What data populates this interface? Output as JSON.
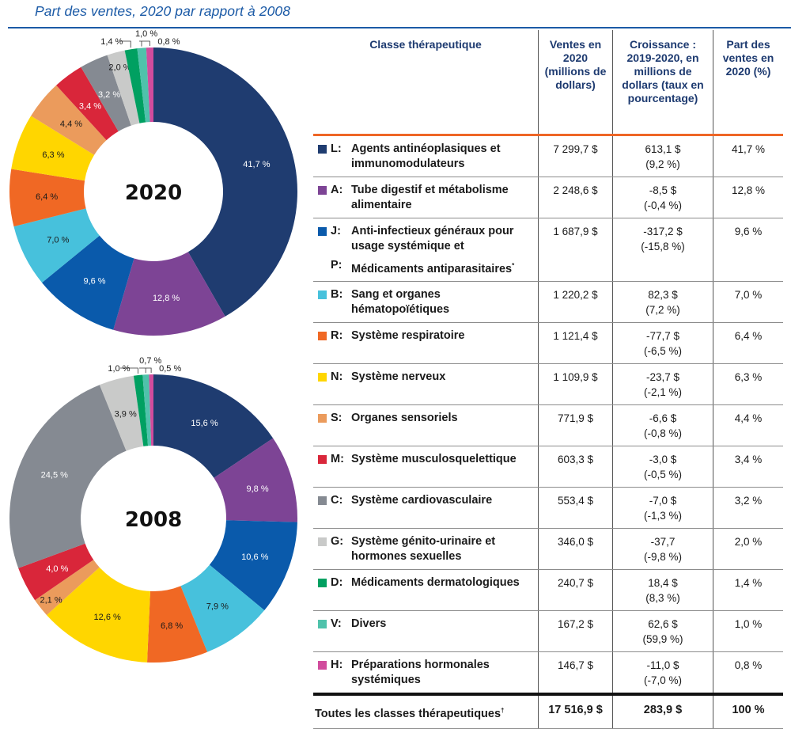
{
  "title": "Part des ventes, 2020 par rapport à 2008",
  "chart_data": [
    {
      "type": "pie",
      "variant": "donut",
      "center_label": "2020",
      "start": "top, clockwise",
      "categories": [
        "L",
        "A",
        "J",
        "B",
        "R",
        "N",
        "S",
        "M",
        "C",
        "G",
        "D",
        "V",
        "H"
      ],
      "values": [
        41.7,
        12.8,
        9.6,
        7.0,
        6.4,
        6.3,
        4.4,
        3.4,
        3.2,
        2.0,
        1.4,
        1.0,
        0.8
      ],
      "labels": [
        "41,7 %",
        "12,8 %",
        "9,6 %",
        "7,0 %",
        "6,4 %",
        "6,3 %",
        "4,4 %",
        "3,4 %",
        "3,2 %",
        "2,0 %",
        "1,4 %",
        "1,0 %",
        "0,8 %"
      ]
    },
    {
      "type": "pie",
      "variant": "donut",
      "center_label": "2008",
      "start": "top, clockwise",
      "categories": [
        "L",
        "A",
        "J",
        "B",
        "R",
        "N",
        "S",
        "M",
        "C",
        "G",
        "D",
        "V",
        "H"
      ],
      "values": [
        15.6,
        9.8,
        10.6,
        7.9,
        6.8,
        12.6,
        2.1,
        4.0,
        24.5,
        3.9,
        1.0,
        0.7,
        0.5
      ],
      "labels": [
        "15,6 %",
        "9,8 %",
        "10,6 %",
        "7,9 %",
        "6,8 %",
        "12,6 %",
        "2,1 %",
        "4,0 %",
        "24,5 %",
        "3,9 %",
        "1,0 %",
        "0,7 %",
        "0,5 %"
      ]
    }
  ],
  "colors": {
    "L": "#1f3c70",
    "A": "#7d4495",
    "J": "#0a5aab",
    "B": "#47c1dc",
    "R": "#f06824",
    "N": "#ffd600",
    "S": "#eb9b5c",
    "M": "#d9263a",
    "C": "#858a92",
    "G": "#c9cac9",
    "D": "#00a061",
    "V": "#4fc2ab",
    "H": "#d14c9d",
    "accent_rule": "#ee6626",
    "title": "#1b5aa6",
    "header_text": "#1d3a70"
  },
  "table": {
    "headers": {
      "class": "Classe thérapeutique",
      "sales": "Ventes en 2020 (millions de dollars)",
      "growth": "Croissance : 2019-2020, en millions de dollars (taux en pourcentage)",
      "share": "Part des ventes en 2020 (%)"
    },
    "rows": [
      {
        "code": "L:",
        "name": "Agents antinéoplasiques et immunomodulateurs",
        "sales": "7 299,7 $",
        "growth": "613,1 $",
        "growth_pct": "(9,2 %)",
        "share": "41,7 %"
      },
      {
        "code": "A:",
        "name": "Tube digestif et métabolisme alimentaire",
        "sales": "2 248,6 $",
        "growth": "-8,5 $",
        "growth_pct": "(-0,4 %)",
        "share": "12,8 %"
      },
      {
        "code": "J:",
        "name": "Anti-infectieux généraux pour usage systémique et",
        "code2": "P:",
        "name2": "Médicaments antiparasitaires",
        "name2_sup": "*",
        "sales": "1 687,9 $",
        "growth": "-317,2 $",
        "growth_pct": "(-15,8 %)",
        "share": "9,6 %"
      },
      {
        "code": "B:",
        "name": "Sang et organes hématopoïétiques",
        "sales": "1 220,2 $",
        "growth": "82,3 $",
        "growth_pct": "(7,2 %)",
        "share": "7,0 %"
      },
      {
        "code": "R:",
        "name": "Système respiratoire",
        "sales": "1 121,4 $",
        "growth": "-77,7 $",
        "growth_pct": "(-6,5 %)",
        "share": "6,4 %"
      },
      {
        "code": "N:",
        "name": "Système nerveux",
        "sales": "1 109,9 $",
        "growth": "-23,7 $",
        "growth_pct": "(-2,1 %)",
        "share": "6,3 %"
      },
      {
        "code": "S:",
        "name": "Organes sensoriels",
        "sales": "771,9 $",
        "growth": "-6,6 $",
        "growth_pct": "(-0,8 %)",
        "share": "4,4 %"
      },
      {
        "code": "M:",
        "name": "Système musculosquelettique",
        "sales": "603,3 $",
        "growth": "-3,0 $",
        "growth_pct": "(-0,5 %)",
        "share": "3,4 %"
      },
      {
        "code": "C:",
        "name": "Système cardiovasculaire",
        "sales": "553,4 $",
        "growth": "-7,0 $",
        "growth_pct": "(-1,3 %)",
        "share": "3,2 %"
      },
      {
        "code": "G:",
        "name": "Système génito-urinaire et hormones sexuelles",
        "sales": "346,0 $",
        "growth": "-37,7",
        "growth_pct": "(-9,8 %)",
        "share": "2,0 %"
      },
      {
        "code": "D:",
        "name": "Médicaments dermatologiques",
        "sales": "240,7 $",
        "growth": "18,4 $",
        "growth_pct": "(8,3 %)",
        "share": "1,4 %"
      },
      {
        "code": "V:",
        "name": "Divers",
        "sales": "167,2 $",
        "growth": "62,6 $",
        "growth_pct": "(59,9 %)",
        "share": "1,0 %"
      },
      {
        "code": "H:",
        "name": "Préparations hormonales systémiques",
        "sales": "146,7 $",
        "growth": "-11,0 $",
        "growth_pct": "(-7,0 %)",
        "share": "0,8 %"
      }
    ],
    "total": {
      "label": "Toutes les classes thérapeutiques",
      "label_sup": "†",
      "sales": "17 516,9 $",
      "growth": "283,9 $",
      "share": "100 %"
    }
  }
}
